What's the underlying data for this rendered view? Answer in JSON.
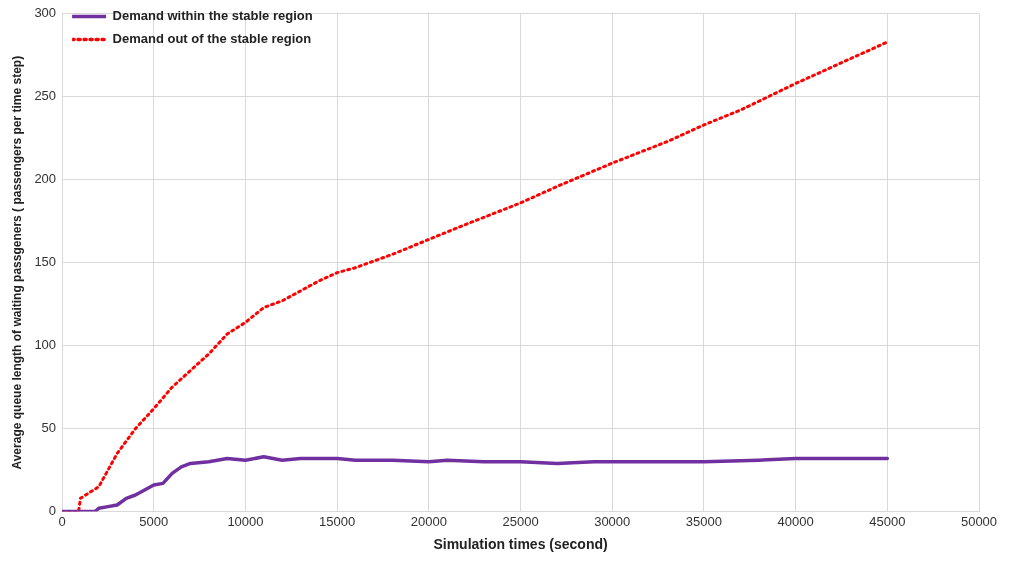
{
  "chart_data": {
    "type": "line",
    "xlabel": "Simulation times (second)",
    "ylabel": "Average queue length of waiting passgeners ( passengers per time step)",
    "xlim": [
      0,
      50000
    ],
    "xticks": [
      0,
      5000,
      10000,
      15000,
      20000,
      25000,
      30000,
      35000,
      40000,
      45000,
      50000
    ],
    "ylim": [
      0,
      300
    ],
    "yticks": [
      0,
      50,
      100,
      150,
      200,
      250,
      300
    ],
    "grid": true,
    "legend": "top left",
    "marker": "none",
    "series": [
      {
        "name": "Demand within the stable region",
        "color": "#7030a0",
        "line_style": "solid",
        "x": [
          0,
          1800,
          2000,
          2500,
          3000,
          3500,
          4000,
          4500,
          5000,
          5500,
          6000,
          6500,
          7000,
          8000,
          9000,
          10000,
          11000,
          12000,
          13000,
          14000,
          15000,
          16000,
          18000,
          20000,
          21000,
          23000,
          25000,
          27000,
          29000,
          30000,
          35000,
          38000,
          40000,
          45000
        ],
        "values": [
          0,
          0,
          2,
          3,
          4,
          8,
          10,
          13,
          16,
          17,
          23,
          27,
          29,
          30,
          32,
          31,
          33,
          31,
          32,
          32,
          32,
          31,
          31,
          30,
          31,
          30,
          30,
          29,
          30,
          30,
          30,
          31,
          32,
          32
        ]
      },
      {
        "name": "Demand out of the stable region",
        "color": "#ff0000",
        "line_style": "dotted",
        "x": [
          0,
          900,
          1000,
          2000,
          3000,
          4000,
          5000,
          6000,
          7000,
          8000,
          9000,
          10000,
          11000,
          12000,
          13000,
          14000,
          15000,
          16000,
          18000,
          20000,
          22000,
          25000,
          27000,
          30000,
          33000,
          35000,
          37000,
          40000,
          42000,
          45000
        ],
        "values": [
          0,
          0,
          8,
          15,
          35,
          50,
          62,
          75,
          85,
          95,
          107,
          114,
          123,
          127,
          133,
          139,
          144,
          147,
          155,
          164,
          173,
          186,
          196,
          210,
          223,
          233,
          242,
          258,
          268,
          283
        ]
      }
    ]
  }
}
